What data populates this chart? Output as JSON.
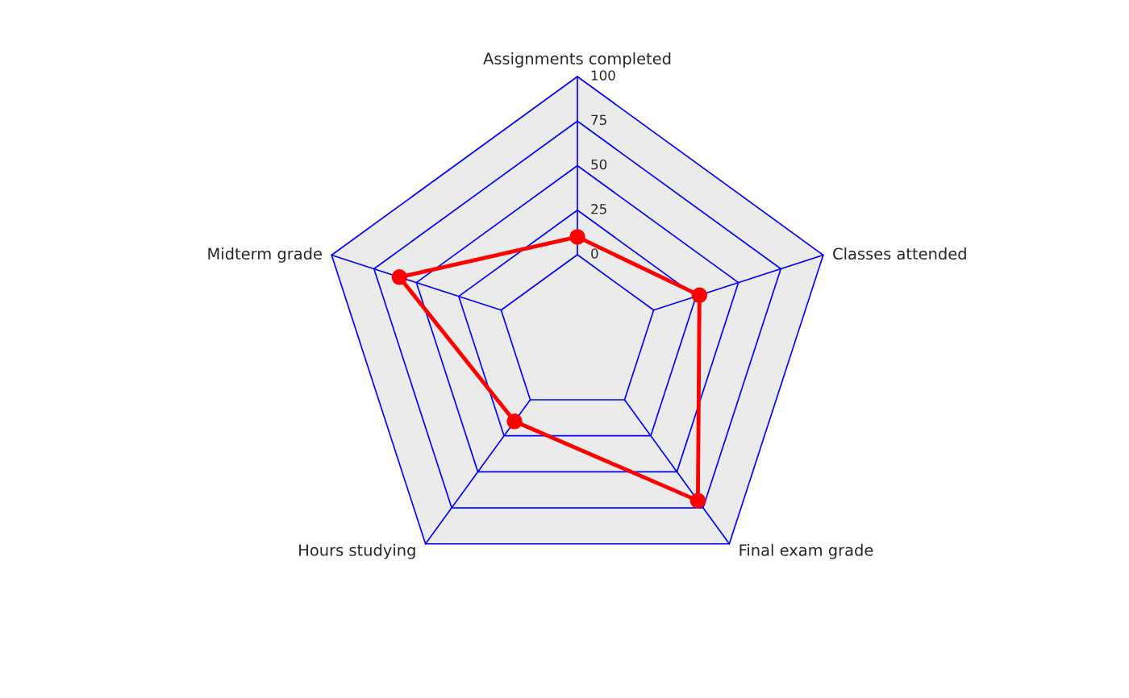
{
  "chart_data": {
    "type": "radar",
    "categories": [
      "Assignments completed",
      "Classes attended",
      "Final exam grade",
      "Hours studying",
      "Midterm grade"
    ],
    "series": [
      {
        "color": "#ff0000",
        "values": [
          10,
          27,
          70,
          15,
          60
        ]
      }
    ],
    "ylim": [
      -45,
      100
    ],
    "yticks": [
      0,
      25,
      50,
      75,
      100
    ],
    "grid": true,
    "marker": "circle",
    "line_style": "solid"
  }
}
